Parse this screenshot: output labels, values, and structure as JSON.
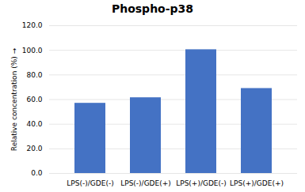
{
  "chart_data": {
    "type": "bar",
    "title": "Phospho-p38",
    "categories": [
      "LPS(-)/GDE(-)",
      "LPS(-)/GDE(+)",
      "LPS(+)/GDE(-)",
      "LPS(+)/GDE(+)"
    ],
    "values": [
      57.0,
      61.5,
      100.5,
      69.0
    ],
    "color": "#4472C4",
    "ylabel": "Relative concentration (%)",
    "ylim": [
      0,
      120
    ],
    "yticks": [
      {
        "value": 0,
        "label": "0.0"
      },
      {
        "value": 20,
        "label": "20.0"
      },
      {
        "value": 40,
        "label": "40.0"
      },
      {
        "value": 60,
        "label": "60.0"
      },
      {
        "value": 80,
        "label": "80.0"
      },
      {
        "value": 100,
        "label": "100.0"
      },
      {
        "value": 120,
        "label": "120.0"
      }
    ],
    "grid": true
  }
}
